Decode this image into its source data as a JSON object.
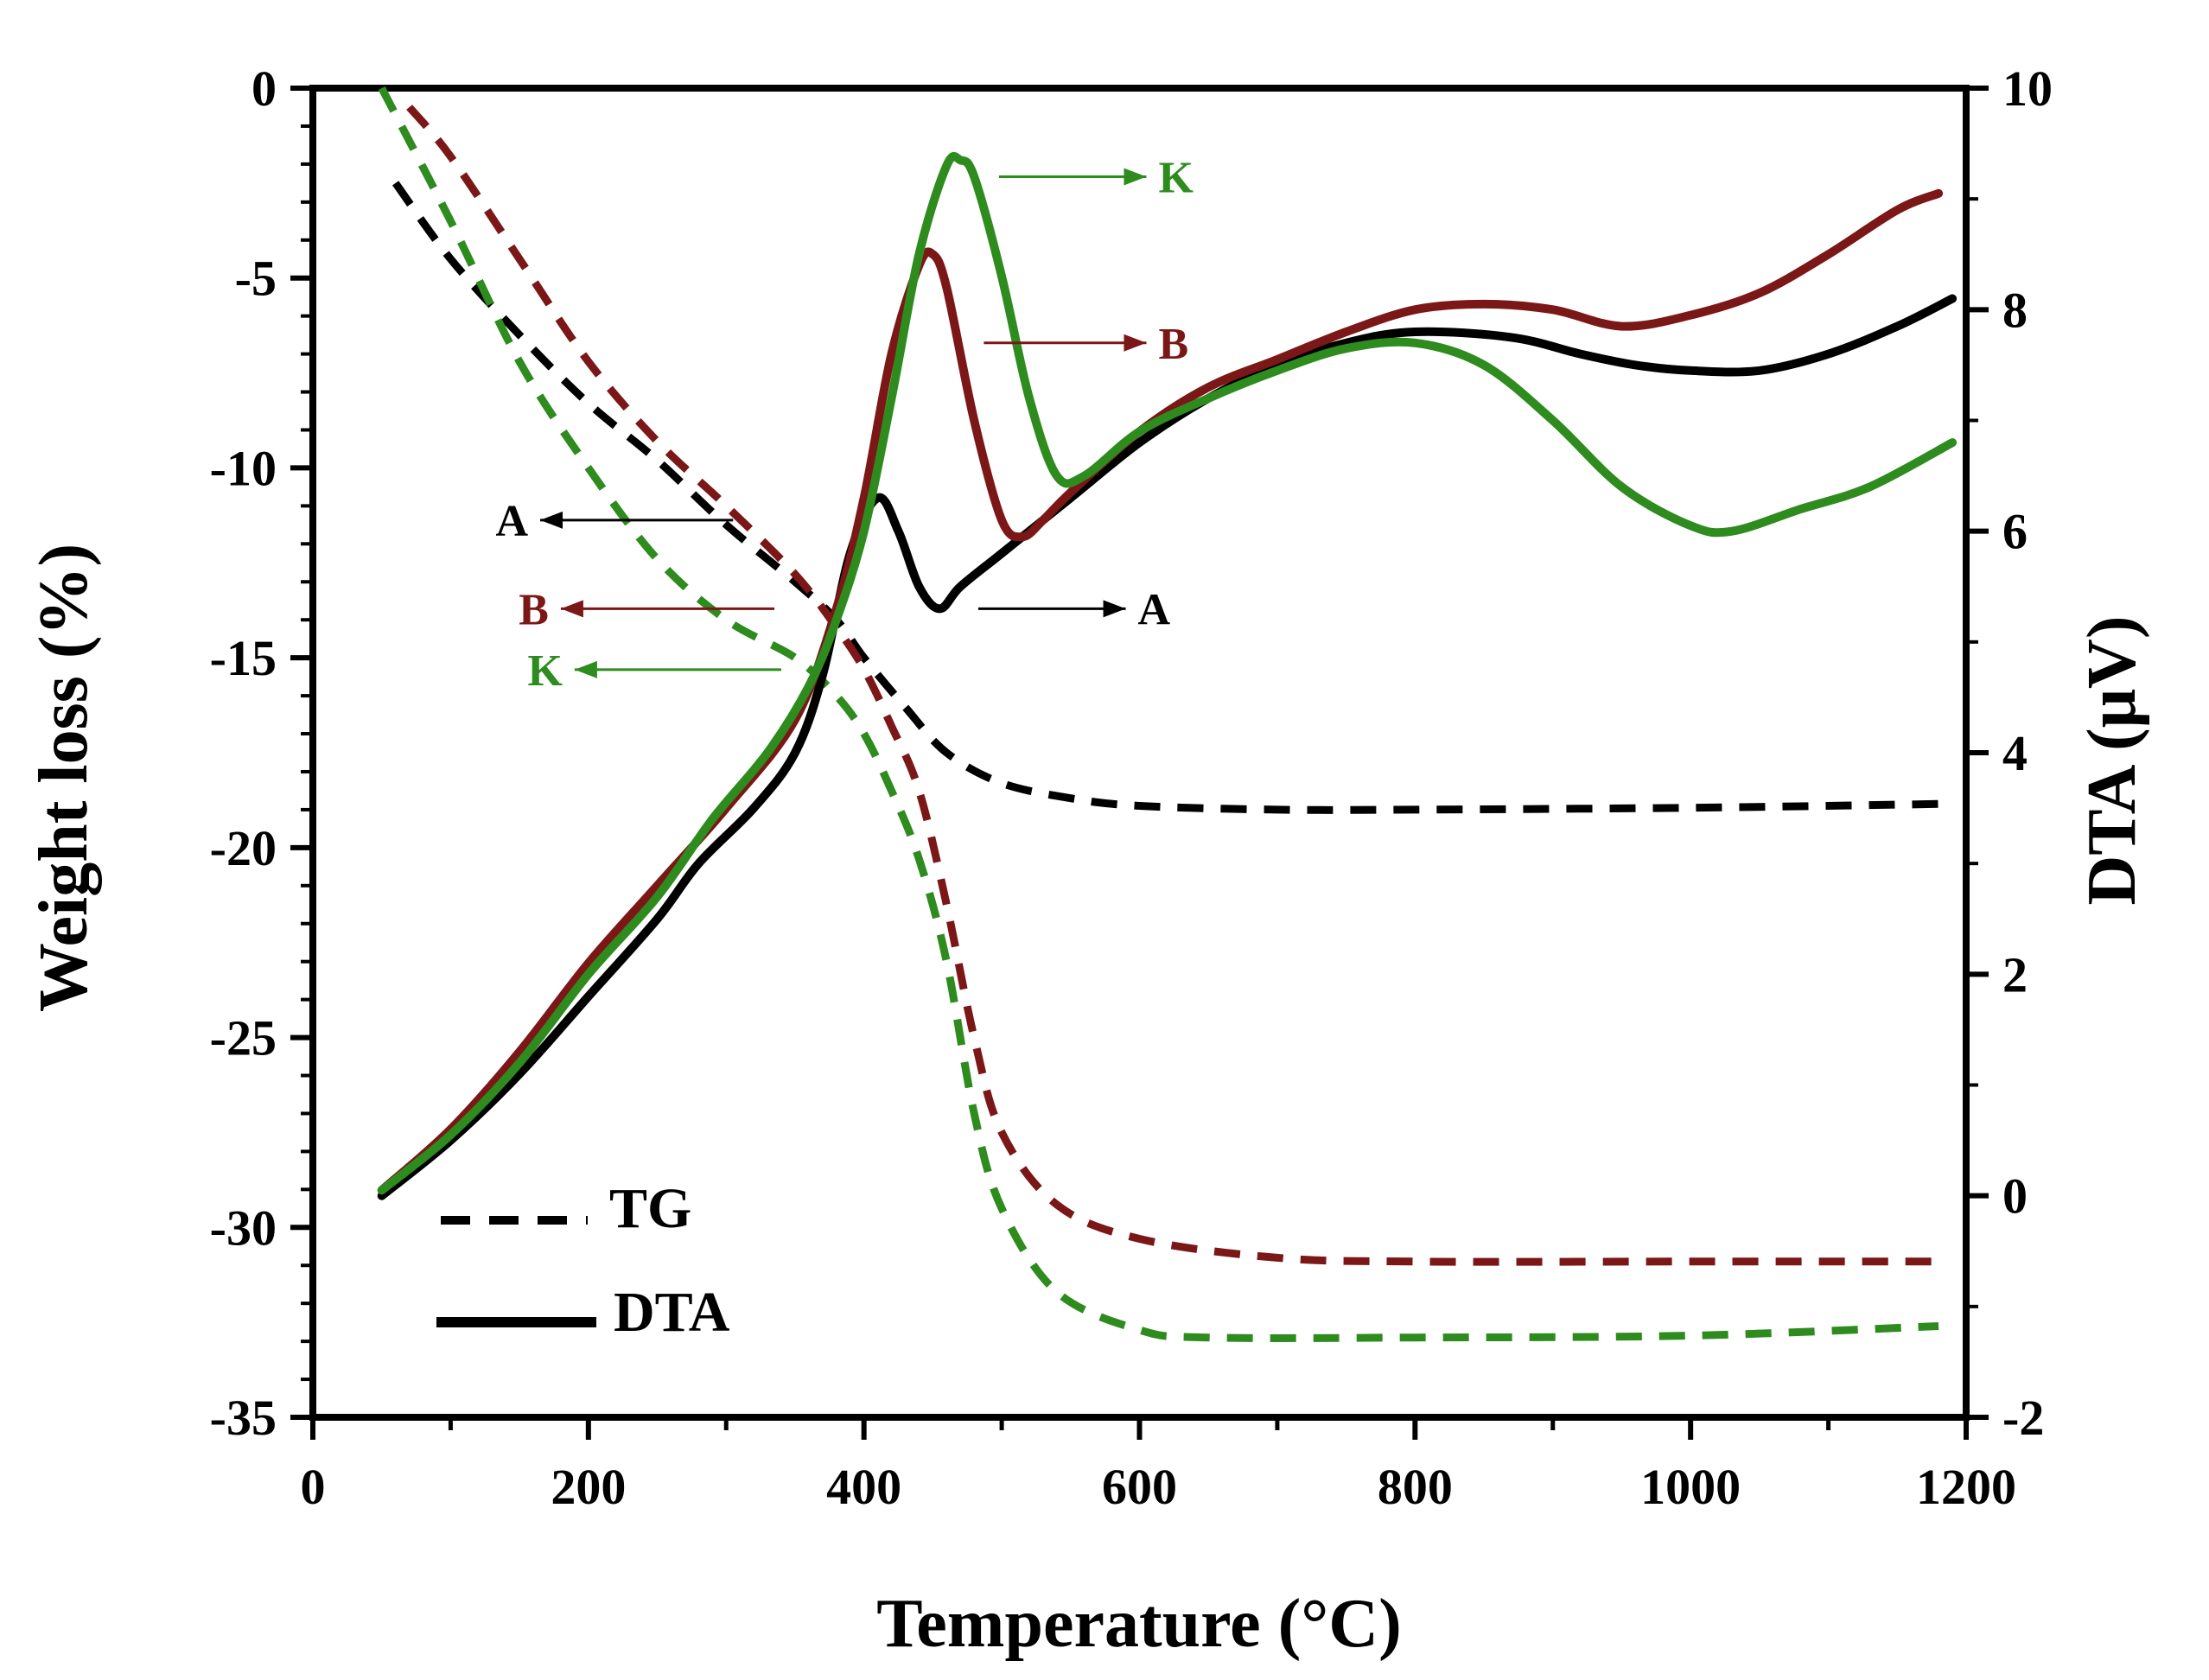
{
  "chart_data": {
    "type": "line",
    "title": "",
    "xlabel": "Temperature (°C)",
    "ylabel_left": "Weight loss (%)",
    "ylabel_right": "DTA (μV)",
    "xlim": [
      0,
      1200
    ],
    "ylim_left": [
      -35,
      0
    ],
    "ylim_right": [
      -2,
      10
    ],
    "x_ticks": [
      "0",
      "200",
      "400",
      "600",
      "800",
      "1000",
      "1200"
    ],
    "y_left_ticks": [
      "0",
      "-5",
      "-10",
      "-15",
      "-20",
      "-25",
      "-30",
      "-35"
    ],
    "y_right_ticks": [
      "10",
      "8",
      "6",
      "4",
      "2",
      "0",
      "-2"
    ],
    "legend": [
      {
        "label": "TG",
        "style": "dashed"
      },
      {
        "label": "DTA",
        "style": "solid"
      }
    ],
    "colors": {
      "A": "#000000",
      "B": "#7b1717",
      "K": "#2e8b1e"
    },
    "series": [
      {
        "name": "A",
        "kind": "TG",
        "axis": "left",
        "color": "#000000",
        "points": [
          [
            60,
            -2.5
          ],
          [
            100,
            -4.5
          ],
          [
            150,
            -6.5
          ],
          [
            200,
            -8.3
          ],
          [
            250,
            -9.8
          ],
          [
            300,
            -11.5
          ],
          [
            350,
            -13
          ],
          [
            380,
            -14
          ],
          [
            400,
            -15
          ],
          [
            430,
            -16.3
          ],
          [
            460,
            -17.5
          ],
          [
            500,
            -18.3
          ],
          [
            550,
            -18.7
          ],
          [
            600,
            -18.9
          ],
          [
            700,
            -19
          ],
          [
            800,
            -19
          ],
          [
            1000,
            -18.95
          ],
          [
            1180,
            -18.85
          ]
        ]
      },
      {
        "name": "B",
        "kind": "TG",
        "axis": "left",
        "color": "#7b1717",
        "points": [
          [
            70,
            -0.5
          ],
          [
            100,
            -1.8
          ],
          [
            150,
            -4.5
          ],
          [
            200,
            -7.2
          ],
          [
            250,
            -9.3
          ],
          [
            300,
            -11
          ],
          [
            350,
            -12.8
          ],
          [
            380,
            -14.2
          ],
          [
            400,
            -15.3
          ],
          [
            420,
            -16.8
          ],
          [
            440,
            -18.5
          ],
          [
            460,
            -21.5
          ],
          [
            480,
            -25
          ],
          [
            500,
            -27.5
          ],
          [
            540,
            -29.4
          ],
          [
            600,
            -30.3
          ],
          [
            700,
            -30.8
          ],
          [
            800,
            -30.9
          ],
          [
            1000,
            -30.9
          ],
          [
            1180,
            -30.9
          ]
        ]
      },
      {
        "name": "K",
        "kind": "TG",
        "axis": "left",
        "color": "#2e8b1e",
        "points": [
          [
            50,
            0
          ],
          [
            100,
            -3.5
          ],
          [
            150,
            -7.2
          ],
          [
            200,
            -10
          ],
          [
            250,
            -12.4
          ],
          [
            300,
            -14
          ],
          [
            350,
            -15
          ],
          [
            380,
            -16
          ],
          [
            400,
            -17
          ],
          [
            420,
            -18.5
          ],
          [
            440,
            -20.3
          ],
          [
            460,
            -23
          ],
          [
            480,
            -27
          ],
          [
            500,
            -29.5
          ],
          [
            540,
            -31.7
          ],
          [
            600,
            -32.7
          ],
          [
            650,
            -32.9
          ],
          [
            800,
            -32.9
          ],
          [
            1000,
            -32.85
          ],
          [
            1180,
            -32.6
          ]
        ]
      },
      {
        "name": "A",
        "kind": "DTA",
        "axis": "right",
        "color": "#000000",
        "points": [
          [
            50,
            0
          ],
          [
            100,
            0.5
          ],
          [
            150,
            1.1
          ],
          [
            200,
            1.8
          ],
          [
            250,
            2.5
          ],
          [
            280,
            3
          ],
          [
            320,
            3.5
          ],
          [
            350,
            4
          ],
          [
            370,
            4.7
          ],
          [
            390,
            5.8
          ],
          [
            410,
            6.3
          ],
          [
            425,
            6
          ],
          [
            440,
            5.5
          ],
          [
            455,
            5.3
          ],
          [
            470,
            5.5
          ],
          [
            500,
            5.8
          ],
          [
            550,
            6.3
          ],
          [
            600,
            6.8
          ],
          [
            650,
            7.2
          ],
          [
            700,
            7.5
          ],
          [
            750,
            7.7
          ],
          [
            800,
            7.8
          ],
          [
            870,
            7.75
          ],
          [
            920,
            7.6
          ],
          [
            960,
            7.5
          ],
          [
            1000,
            7.45
          ],
          [
            1050,
            7.45
          ],
          [
            1100,
            7.6
          ],
          [
            1150,
            7.85
          ],
          [
            1190,
            8.1
          ]
        ]
      },
      {
        "name": "B",
        "kind": "DTA",
        "axis": "right",
        "color": "#7b1717",
        "points": [
          [
            50,
            0.05
          ],
          [
            100,
            0.6
          ],
          [
            150,
            1.3
          ],
          [
            200,
            2.1
          ],
          [
            250,
            2.8
          ],
          [
            300,
            3.5
          ],
          [
            350,
            4.3
          ],
          [
            380,
            5.3
          ],
          [
            400,
            6.3
          ],
          [
            420,
            7.6
          ],
          [
            440,
            8.4
          ],
          [
            450,
            8.5
          ],
          [
            460,
            8.2
          ],
          [
            480,
            7
          ],
          [
            500,
            6.1
          ],
          [
            515,
            5.95
          ],
          [
            530,
            6.1
          ],
          [
            550,
            6.35
          ],
          [
            600,
            6.9
          ],
          [
            650,
            7.3
          ],
          [
            700,
            7.55
          ],
          [
            750,
            7.8
          ],
          [
            800,
            8
          ],
          [
            850,
            8.05
          ],
          [
            900,
            8
          ],
          [
            950,
            7.85
          ],
          [
            1000,
            7.95
          ],
          [
            1050,
            8.15
          ],
          [
            1100,
            8.5
          ],
          [
            1150,
            8.9
          ],
          [
            1180,
            9.05
          ]
        ]
      },
      {
        "name": "K",
        "kind": "DTA",
        "axis": "right",
        "color": "#2e8b1e",
        "points": [
          [
            50,
            0.05
          ],
          [
            100,
            0.55
          ],
          [
            150,
            1.2
          ],
          [
            200,
            2
          ],
          [
            250,
            2.7
          ],
          [
            290,
            3.4
          ],
          [
            330,
            4
          ],
          [
            360,
            4.6
          ],
          [
            380,
            5.2
          ],
          [
            400,
            6
          ],
          [
            420,
            7.2
          ],
          [
            440,
            8.5
          ],
          [
            460,
            9.3
          ],
          [
            470,
            9.35
          ],
          [
            480,
            9.2
          ],
          [
            500,
            8.3
          ],
          [
            520,
            7.2
          ],
          [
            540,
            6.5
          ],
          [
            560,
            6.5
          ],
          [
            600,
            6.9
          ],
          [
            650,
            7.2
          ],
          [
            700,
            7.45
          ],
          [
            750,
            7.65
          ],
          [
            800,
            7.7
          ],
          [
            850,
            7.5
          ],
          [
            900,
            7
          ],
          [
            950,
            6.4
          ],
          [
            1000,
            6.05
          ],
          [
            1030,
            6
          ],
          [
            1080,
            6.2
          ],
          [
            1130,
            6.4
          ],
          [
            1190,
            6.8
          ]
        ]
      }
    ],
    "annotations": [
      {
        "label": "K",
        "color": "#2e8b1e",
        "direction": "right",
        "from": [
          498,
          9.2
        ],
        "to": [
          605,
          9.2
        ]
      },
      {
        "label": "B",
        "color": "#7b1717",
        "direction": "right",
        "from": [
          487,
          7.7
        ],
        "to": [
          605,
          7.7
        ]
      },
      {
        "label": "A",
        "color": "#000000",
        "direction": "right",
        "from": [
          483,
          5.3
        ],
        "to": [
          590,
          5.3
        ]
      },
      {
        "label": "A",
        "color": "#000000",
        "direction": "left",
        "from": [
          305,
          6.1
        ],
        "to": [
          165,
          6.1
        ]
      },
      {
        "label": "B",
        "color": "#7b1717",
        "direction": "left",
        "from": [
          335,
          5.3
        ],
        "to": [
          180,
          5.3
        ]
      },
      {
        "label": "K",
        "color": "#2e8b1e",
        "direction": "left",
        "from": [
          340,
          4.75
        ],
        "to": [
          190,
          4.75
        ]
      }
    ]
  }
}
